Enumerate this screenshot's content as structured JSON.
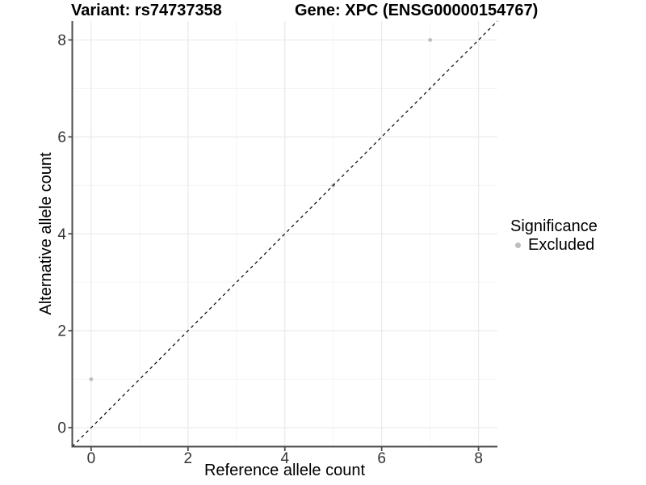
{
  "chart_data": {
    "type": "scatter",
    "title_left": "Variant: rs74737358",
    "title_right": "Gene: XPC (ENSG00000154767)",
    "xlabel": "Reference allele count",
    "ylabel": "Alternative allele count",
    "xlim": [
      -0.39,
      8.39
    ],
    "ylim": [
      -0.39,
      8.39
    ],
    "x_ticks": [
      0,
      2,
      4,
      6,
      8
    ],
    "y_ticks": [
      0,
      2,
      4,
      6,
      8
    ],
    "x_minor_ticks": [
      1,
      3,
      5,
      7
    ],
    "y_minor_ticks": [
      1,
      3,
      5,
      7
    ],
    "grid": true,
    "reference_line": {
      "type": "abline",
      "slope": 1,
      "intercept": 0,
      "style": "dashed",
      "color": "#000000"
    },
    "series": [
      {
        "name": "Excluded",
        "color": "#bdbdbd",
        "points": [
          {
            "x": 0,
            "y": 1
          },
          {
            "x": 5,
            "y": 5
          },
          {
            "x": 7,
            "y": 8
          }
        ]
      }
    ],
    "legend": {
      "title": "Significance",
      "position": "right",
      "entries": [
        {
          "label": "Excluded",
          "color": "#bdbdbd"
        }
      ]
    }
  },
  "colors": {
    "major_grid": "#e8e8e8",
    "minor_grid": "#f3f3f3",
    "axis_line": "#4d4d4d",
    "tick_label": "#333333",
    "point": "#bdbdbd",
    "background": "#ffffff"
  }
}
